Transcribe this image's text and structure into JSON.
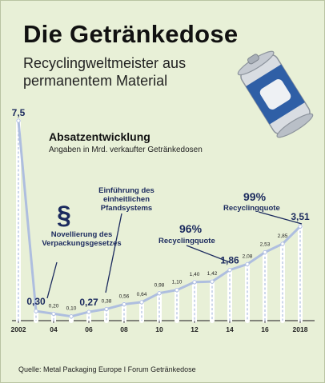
{
  "header": {
    "title": "Die Getränkedose",
    "subtitle": "Recyclingweltmeister aus permanentem Material"
  },
  "chart_section": {
    "title": "Absatzentwicklung",
    "subtitle": "Angaben in Mrd. verkaufter Getränkedosen"
  },
  "annotations": {
    "paragraph_symbol": "§",
    "novellierung": "Novellierung des Verpackungsgesetzes",
    "pfand": "Einführung des einheitlichen Pfandsystems",
    "pct96": "96%",
    "quote96": "Recyclingquote",
    "pct99": "99%",
    "quote99": "Recyclingquote"
  },
  "source": "Quelle: Metal Packaging Europe I Forum Getränkedose",
  "colors": {
    "background": "#e8f0d7",
    "line": "#aebedf",
    "highlight": "#1b2a5e",
    "can_blue": "#2f5fa6",
    "can_silver": "#d9dde2"
  },
  "chart_data": {
    "type": "line",
    "x": [
      2002,
      2003,
      2004,
      2005,
      2006,
      2007,
      2008,
      2009,
      2010,
      2011,
      2012,
      2013,
      2014,
      2015,
      2016,
      2017,
      2018
    ],
    "values": [
      7.5,
      0.3,
      0.2,
      0.1,
      0.27,
      0.38,
      0.56,
      0.64,
      0.98,
      1.1,
      1.4,
      1.42,
      1.86,
      2.08,
      2.53,
      2.85,
      3.51
    ],
    "value_labels": [
      "7,5",
      "0,30",
      "0,20",
      "0,10",
      "0,27",
      "0,38",
      "0,56",
      "0,64",
      "0,98",
      "1,10",
      "1,40",
      "1,42",
      "1,86",
      "2,08",
      "2,53",
      "2,85",
      "3,51"
    ],
    "highlighted": [
      "7,5",
      "0,30",
      "0,27",
      "1,86",
      "3,51"
    ],
    "x_ticks": [
      "2002",
      "04",
      "06",
      "08",
      "10",
      "12",
      "14",
      "16",
      "2018"
    ],
    "ylim": [
      0,
      7.5
    ]
  }
}
